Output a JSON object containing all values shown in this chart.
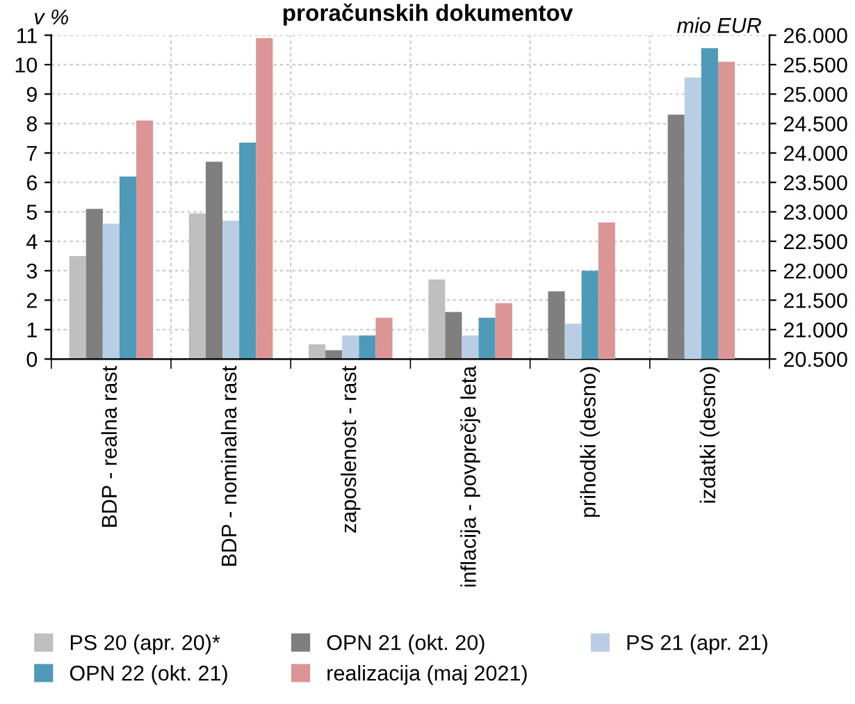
{
  "chart_data": {
    "type": "bar",
    "title": "proračunskih dokumentov",
    "ylabel": "v %",
    "y2label": "mio EUR",
    "categories": [
      "BDP - realna rast",
      "BDP - nominalna rast",
      "zaposlenost - rast",
      "inflacija - povprečje leta",
      "prihodki (desno)",
      "izdatki (desno)"
    ],
    "series": [
      {
        "name": "PS 20 (apr. 20)*",
        "color": "#bfbfbf",
        "values": [
          3.5,
          4.95,
          0.5,
          2.7,
          null,
          null
        ]
      },
      {
        "name": "OPN 21 (okt. 20)",
        "color": "#7f7f7f",
        "values": [
          5.1,
          6.7,
          0.3,
          1.6,
          null,
          null
        ]
      },
      {
        "name": "PS 21 (apr. 21)",
        "color": "#b9cde5",
        "values": [
          4.6,
          4.7,
          0.8,
          0.8,
          null,
          null
        ]
      },
      {
        "name": "OPN 22 (okt. 21)",
        "color": "#4f99b9",
        "values": [
          6.2,
          7.35,
          0.8,
          1.4,
          null,
          null
        ]
      },
      {
        "name": "realizacija (maj 2021)",
        "color": "#da9594",
        "values": [
          8.1,
          10.9,
          1.4,
          1.9,
          null,
          null
        ]
      },
      {
        "color": "#7f7f7f",
        "axis": "y2",
        "values": [
          null,
          null,
          null,
          null,
          21650,
          24650
        ]
      },
      {
        "color": "#b9cde5",
        "axis": "y2",
        "values": [
          null,
          null,
          null,
          null,
          21100,
          25280
        ]
      },
      {
        "color": "#4f99b9",
        "axis": "y2",
        "values": [
          null,
          null,
          null,
          null,
          22000,
          25780
        ]
      },
      {
        "color": "#da9594",
        "axis": "y2",
        "values": [
          null,
          null,
          null,
          null,
          22820,
          25550
        ]
      }
    ],
    "ylim": [
      0,
      11
    ],
    "yticks": [
      0,
      1,
      2,
      3,
      4,
      5,
      6,
      7,
      8,
      9,
      10,
      11
    ],
    "y2lim": [
      20500,
      26000
    ],
    "y2ticks": [
      {
        "value": 20500,
        "label": "20.500"
      },
      {
        "value": 21000,
        "label": "21.000"
      },
      {
        "value": 21500,
        "label": "21.500"
      },
      {
        "value": 22000,
        "label": "22.000"
      },
      {
        "value": 22500,
        "label": "22.500"
      },
      {
        "value": 23000,
        "label": "23.000"
      },
      {
        "value": 23500,
        "label": "23.500"
      },
      {
        "value": 24000,
        "label": "24.000"
      },
      {
        "value": 24500,
        "label": "24.500"
      },
      {
        "value": 25000,
        "label": "25.000"
      },
      {
        "value": 25500,
        "label": "25.500"
      },
      {
        "value": 26000,
        "label": "26.000"
      }
    ],
    "grid": true,
    "legend": "bottom"
  }
}
